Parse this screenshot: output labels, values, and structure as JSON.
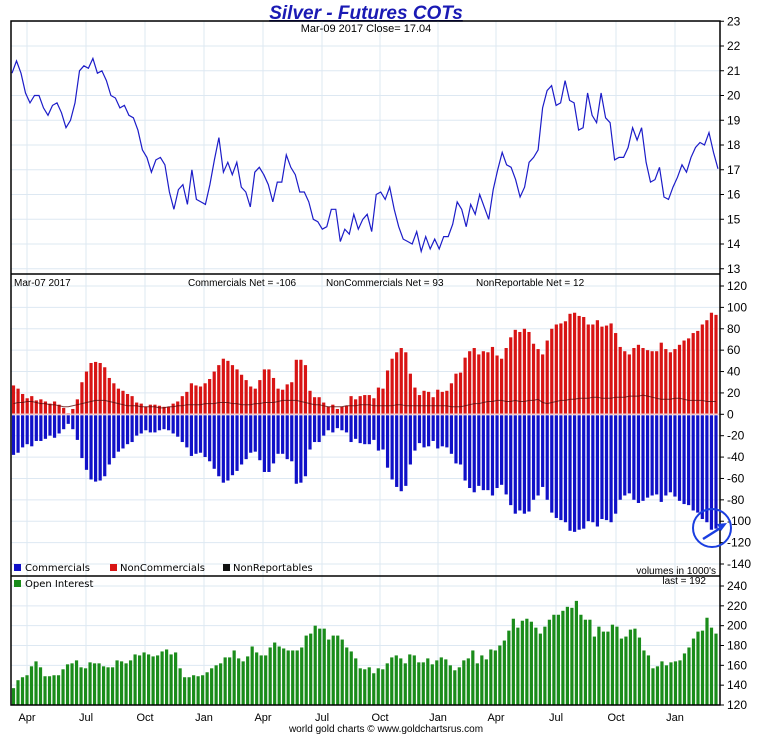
{
  "chart_data": [
    {
      "type": "line",
      "title": "Silver - Futures COTs",
      "subtitle": "Mar-09  2017   Close= 17.04",
      "ylim": [
        13,
        23
      ],
      "yticks": [
        "23",
        "22",
        "21",
        "20",
        "19",
        "18",
        "17",
        "16",
        "15",
        "14",
        "13"
      ],
      "series": [
        {
          "name": "Silver price",
          "color": "#1c1cc8",
          "values": [
            20.9,
            21.4,
            20.9,
            20.1,
            19.7,
            20.0,
            20.0,
            19.5,
            19.2,
            19.6,
            19.7,
            19.3,
            18.7,
            19.0,
            19.7,
            21.0,
            21.2,
            21.1,
            21.5,
            20.9,
            21.0,
            20.6,
            20.0,
            19.9,
            19.5,
            19.6,
            19.2,
            19.1,
            18.6,
            17.8,
            17.5,
            16.9,
            17.4,
            17.5,
            17.2,
            16.1,
            15.4,
            16.2,
            16.4,
            15.6,
            17.0,
            15.8,
            15.7,
            15.6,
            16.4,
            17.4,
            18.3,
            16.9,
            17.3,
            16.8,
            17.3,
            16.3,
            16.1,
            15.5,
            16.9,
            17.1,
            16.8,
            16.4,
            15.7,
            16.5,
            16.5,
            17.6,
            17.1,
            16.8,
            16.1,
            16.1,
            15.7,
            15.0,
            14.9,
            14.6,
            14.7,
            15.4,
            15.4,
            14.1,
            14.6,
            14.4,
            15.2,
            14.6,
            15.0,
            15.2,
            14.5,
            16.0,
            16.1,
            15.8,
            16.3,
            15.4,
            14.7,
            14.2,
            14.1,
            14.0,
            14.5,
            13.7,
            14.3,
            13.8,
            14.2,
            13.8,
            14.3,
            14.3,
            14.8,
            15.7,
            15.4,
            14.7,
            15.6,
            15.2,
            16.0,
            15.5,
            15.0,
            16.2,
            17.0,
            17.7,
            17.2,
            17.1,
            16.6,
            15.9,
            16.3,
            17.3,
            17.5,
            17.8,
            19.5,
            20.2,
            20.4,
            19.6,
            19.7,
            20.6,
            19.8,
            19.7,
            18.6,
            18.7,
            20.1,
            19.2,
            18.9,
            20.1,
            19.1,
            18.9,
            17.4,
            17.5,
            17.5,
            17.9,
            18.7,
            18.2,
            18.7,
            17.3,
            16.5,
            16.6,
            17.1,
            15.9,
            15.8,
            16.3,
            16.7,
            17.2,
            16.9,
            17.5,
            17.9,
            18.1,
            18.0,
            18.5,
            17.7,
            17.04
          ]
        }
      ]
    },
    {
      "type": "bar",
      "date_label": "Mar-07  2017",
      "summary": [
        "Commercials Net = -106",
        "NonCommercials Net = 93",
        "NonReportable Net = 12"
      ],
      "ylim": [
        -140,
        120
      ],
      "yticks": [
        "120",
        "100",
        "80",
        "60",
        "40",
        "20",
        "0",
        "-20",
        "-40",
        "-60",
        "-80",
        "-100",
        "-120",
        "-140"
      ],
      "legend": [
        "Commercials",
        "NonCommercials",
        "NonReportables"
      ],
      "legend_position": "bottom-left",
      "units_note": "volumes in 1000's",
      "colors": {
        "commercials": "#1010c8",
        "noncommercials": "#d81414",
        "nonreportables": "#000000"
      },
      "series": [
        {
          "name": "NonCommercials",
          "values": [
            27,
            24,
            19,
            15,
            17,
            13,
            14,
            12,
            10,
            12,
            9,
            6,
            1,
            5,
            14,
            30,
            40,
            48,
            49,
            48,
            44,
            34,
            29,
            24,
            22,
            19,
            17,
            11,
            10,
            7,
            9,
            9,
            8,
            7,
            7,
            10,
            12,
            17,
            21,
            29,
            27,
            26,
            29,
            33,
            40,
            46,
            52,
            50,
            46,
            42,
            37,
            32,
            26,
            24,
            32,
            42,
            42,
            34,
            24,
            23,
            28,
            30,
            51,
            51,
            46,
            22,
            16,
            16,
            11,
            7,
            9,
            5,
            7,
            8,
            17,
            14,
            17,
            18,
            18,
            15,
            25,
            24,
            41,
            52,
            58,
            62,
            58,
            38,
            25,
            18,
            22,
            21,
            16,
            23,
            21,
            22,
            29,
            38,
            39,
            53,
            59,
            62,
            56,
            59,
            58,
            63,
            55,
            52,
            62,
            72,
            79,
            77,
            80,
            77,
            66,
            61,
            56,
            69,
            80,
            84,
            85,
            87,
            94,
            95,
            92,
            91,
            84,
            84,
            88,
            82,
            83,
            85,
            76,
            63,
            59,
            56,
            62,
            65,
            62,
            60,
            59,
            59,
            67,
            61,
            58,
            61,
            65,
            69,
            71,
            76,
            78,
            84,
            88,
            95,
            93
          ]
        },
        {
          "name": "Commercials",
          "values": [
            -37,
            -35,
            -30,
            -27,
            -29,
            -24,
            -24,
            -22,
            -19,
            -21,
            -17,
            -13,
            -8,
            -13,
            -23,
            -40,
            -51,
            -60,
            -62,
            -61,
            -57,
            -46,
            -40,
            -34,
            -31,
            -27,
            -25,
            -19,
            -17,
            -14,
            -16,
            -16,
            -14,
            -13,
            -14,
            -17,
            -20,
            -25,
            -30,
            -38,
            -36,
            -35,
            -39,
            -43,
            -50,
            -57,
            -63,
            -61,
            -56,
            -52,
            -46,
            -41,
            -35,
            -34,
            -42,
            -53,
            -53,
            -45,
            -36,
            -36,
            -41,
            -43,
            -64,
            -63,
            -57,
            -32,
            -25,
            -25,
            -19,
            -14,
            -16,
            -12,
            -14,
            -16,
            -25,
            -22,
            -26,
            -27,
            -27,
            -23,
            -33,
            -32,
            -49,
            -60,
            -67,
            -71,
            -66,
            -46,
            -33,
            -26,
            -30,
            -29,
            -24,
            -31,
            -29,
            -30,
            -36,
            -45,
            -46,
            -61,
            -68,
            -72,
            -66,
            -70,
            -70,
            -75,
            -68,
            -65,
            -74,
            -84,
            -92,
            -89,
            -92,
            -90,
            -79,
            -75,
            -67,
            -79,
            -91,
            -96,
            -98,
            -100,
            -108,
            -109,
            -107,
            -106,
            -99,
            -100,
            -104,
            -97,
            -98,
            -100,
            -92,
            -79,
            -75,
            -73,
            -79,
            -82,
            -80,
            -77,
            -75,
            -74,
            -81,
            -75,
            -72,
            -76,
            -80,
            -83,
            -84,
            -89,
            -91,
            -97,
            -100,
            -107,
            -106
          ]
        },
        {
          "name": "NonReportables",
          "values": [
            10,
            11,
            11,
            12,
            12,
            11,
            10,
            10,
            9,
            9,
            8,
            7,
            7,
            8,
            9,
            10,
            11,
            12,
            13,
            13,
            13,
            12,
            11,
            10,
            9,
            8,
            8,
            8,
            7,
            7,
            7,
            7,
            6,
            6,
            7,
            7,
            8,
            8,
            9,
            9,
            9,
            9,
            10,
            10,
            10,
            11,
            11,
            11,
            10,
            10,
            9,
            9,
            9,
            10,
            10,
            11,
            11,
            11,
            12,
            13,
            13,
            13,
            13,
            12,
            11,
            10,
            9,
            9,
            8,
            7,
            7,
            7,
            7,
            8,
            8,
            8,
            9,
            9,
            9,
            8,
            8,
            8,
            8,
            8,
            9,
            9,
            8,
            8,
            8,
            8,
            8,
            8,
            8,
            8,
            8,
            8,
            7,
            7,
            7,
            8,
            9,
            10,
            10,
            11,
            12,
            12,
            13,
            13,
            12,
            12,
            13,
            12,
            12,
            13,
            13,
            14,
            11,
            10,
            11,
            12,
            13,
            13,
            14,
            14,
            15,
            15,
            15,
            16,
            16,
            15,
            15,
            15,
            16,
            16,
            16,
            17,
            17,
            17,
            18,
            17,
            16,
            15,
            14,
            14,
            14,
            15,
            15,
            14,
            13,
            13,
            13,
            13,
            12,
            12,
            12
          ]
        }
      ]
    },
    {
      "type": "bar",
      "legend": [
        "Open Interest"
      ],
      "last_label": "last = 192",
      "color": "#1a8c1a",
      "ylim": [
        120,
        240
      ],
      "yticks": [
        "240",
        "220",
        "200",
        "180",
        "160",
        "140",
        "120"
      ],
      "series": [
        {
          "name": "Open Interest",
          "values": [
            137,
            145,
            148,
            150,
            159,
            164,
            158,
            149,
            149,
            150,
            150,
            156,
            161,
            162,
            165,
            158,
            157,
            163,
            162,
            162,
            159,
            158,
            158,
            165,
            164,
            162,
            165,
            171,
            170,
            173,
            171,
            169,
            170,
            174,
            176,
            171,
            173,
            157,
            148,
            148,
            150,
            149,
            150,
            153,
            157,
            160,
            162,
            168,
            168,
            175,
            167,
            164,
            169,
            179,
            173,
            170,
            170,
            178,
            183,
            179,
            177,
            175,
            175,
            175,
            178,
            190,
            192,
            200,
            197,
            197,
            186,
            190,
            190,
            186,
            178,
            174,
            167,
            157,
            156,
            158,
            152,
            157,
            156,
            162,
            168,
            170,
            167,
            162,
            171,
            170,
            163,
            163,
            167,
            161,
            165,
            168,
            166,
            160,
            155,
            158,
            165,
            167,
            175,
            162,
            170,
            166,
            176,
            175,
            180,
            185,
            195,
            207,
            198,
            205,
            207,
            204,
            198,
            192,
            199,
            206,
            211,
            211,
            215,
            219,
            218,
            225,
            211,
            206,
            206,
            189,
            199,
            194,
            194,
            201,
            199,
            187,
            189,
            196,
            197,
            188,
            175,
            170,
            157,
            159,
            164,
            160,
            163,
            164,
            165,
            172,
            178,
            187,
            194,
            195,
            208,
            198,
            192
          ]
        }
      ]
    }
  ],
  "x_axis": {
    "labels": [
      "Apr",
      "Jul",
      "Oct",
      "Jan",
      "Apr",
      "Jul",
      "Oct",
      "Jan",
      "Apr",
      "Jul",
      "Oct",
      "Jan"
    ]
  },
  "footer": "world gold charts © www.goldchartsrus.com",
  "annotation": {
    "icon": "circled-arrow",
    "color": "#1a3ee0"
  }
}
